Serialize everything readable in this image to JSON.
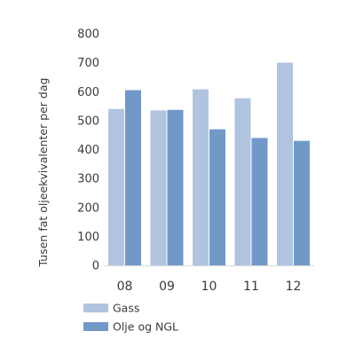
{
  "chart_data": {
    "type": "bar",
    "title": "",
    "xlabel": "",
    "ylabel": "Tusen fat oljeekvivalenter per dag",
    "categories": [
      "08",
      "09",
      "10",
      "11",
      "12"
    ],
    "ylim": [
      0,
      800
    ],
    "yticks": [
      0,
      100,
      200,
      300,
      400,
      500,
      600,
      700,
      800
    ],
    "grid": false,
    "legend_position": "bottom-left",
    "series": [
      {
        "name": "Gass",
        "color": "#b0c4e0",
        "values": [
          540,
          535,
          608,
          577,
          700
        ]
      },
      {
        "name": "Olje og NGL",
        "color": "#7199c8",
        "values": [
          605,
          537,
          470,
          440,
          430
        ]
      }
    ]
  }
}
